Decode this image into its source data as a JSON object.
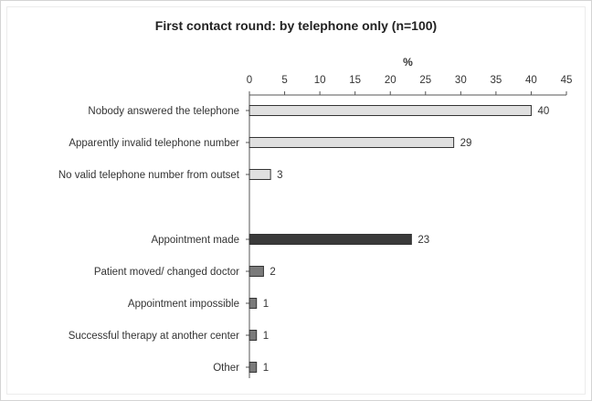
{
  "chart_data": {
    "type": "bar",
    "orientation": "horizontal",
    "title": "First contact round: by telephone only (n=100)",
    "xlabel": "%",
    "ylabel": "",
    "xlim": [
      0,
      45
    ],
    "ticks": [
      0,
      5,
      10,
      15,
      20,
      25,
      30,
      35,
      40,
      45
    ],
    "grid": false,
    "legend": "none",
    "bars": [
      {
        "category": "Nobody answered the telephone",
        "value": 40,
        "color": "#e0e0e0",
        "group": 1
      },
      {
        "category": "Apparently invalid telephone number",
        "value": 29,
        "color": "#e0e0e0",
        "group": 1
      },
      {
        "category": "No valid telephone number from outset",
        "value": 3,
        "color": "#e0e0e0",
        "group": 1
      },
      {
        "category": "Appointment made",
        "value": 23,
        "color": "#3a3a3a",
        "group": 2
      },
      {
        "category": "Patient moved/ changed doctor",
        "value": 2,
        "color": "#7a7a7a",
        "group": 3
      },
      {
        "category": "Appointment impossible",
        "value": 1,
        "color": "#7a7a7a",
        "group": 3
      },
      {
        "category": "Successful therapy at another center",
        "value": 1,
        "color": "#7a7a7a",
        "group": 3
      },
      {
        "category": "Other",
        "value": 1,
        "color": "#7a7a7a",
        "group": 3
      }
    ]
  }
}
